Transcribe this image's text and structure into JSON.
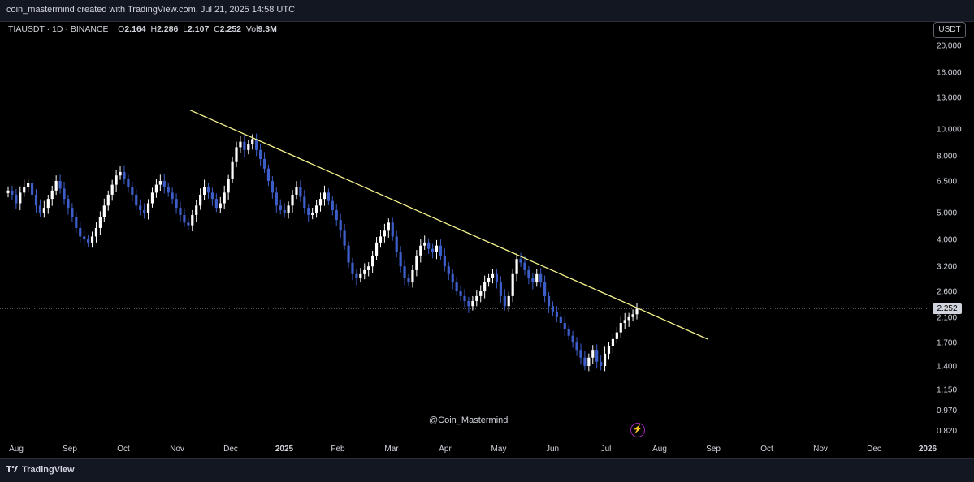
{
  "header": {
    "caption": "coin_mastermind created with TradingView.com, Jul 21, 2025 14:58 UTC"
  },
  "legend": {
    "symbol": "TIAUSDT · 1D · BINANCE",
    "open_label": "O",
    "open": "2.164",
    "high_label": "H",
    "high": "2.286",
    "low_label": "L",
    "low": "2.107",
    "close_label": "C",
    "close": "2.252",
    "vol_label": "Vol",
    "vol": "9.3M"
  },
  "currency_button": "USDT",
  "price_tag": "2.252",
  "watermark": "@Coin_Mastermind",
  "footer": {
    "brand": "TradingView"
  },
  "colors": {
    "up": "#ffffff",
    "down": "#3d5ec9",
    "trendline": "#f5f28a",
    "background": "#000000"
  },
  "chart_data": {
    "type": "candlestick",
    "scale": "log",
    "y_ticks": [
      "20.000",
      "16.000",
      "13.000",
      "10.000",
      "8.000",
      "6.500",
      "5.000",
      "4.000",
      "3.200",
      "2.600",
      "2.100",
      "1.700",
      "1.400",
      "1.150",
      "0.970",
      "0.820"
    ],
    "x_ticks": [
      {
        "label": "Aug",
        "bold": false
      },
      {
        "label": "Sep",
        "bold": false
      },
      {
        "label": "Oct",
        "bold": false
      },
      {
        "label": "Nov",
        "bold": false
      },
      {
        "label": "Dec",
        "bold": false
      },
      {
        "label": "2025",
        "bold": true
      },
      {
        "label": "Feb",
        "bold": false
      },
      {
        "label": "Mar",
        "bold": false
      },
      {
        "label": "Apr",
        "bold": false
      },
      {
        "label": "May",
        "bold": false
      },
      {
        "label": "Jun",
        "bold": false
      },
      {
        "label": "Jul",
        "bold": false
      },
      {
        "label": "Aug",
        "bold": false
      },
      {
        "label": "Sep",
        "bold": false
      },
      {
        "label": "Oct",
        "bold": false
      },
      {
        "label": "Nov",
        "bold": false
      },
      {
        "label": "Dec",
        "bold": false
      },
      {
        "label": "2026",
        "bold": true
      }
    ],
    "series_close": [
      6.0,
      5.8,
      5.4,
      5.9,
      6.2,
      6.4,
      5.8,
      5.3,
      5.0,
      5.2,
      5.6,
      6.0,
      6.5,
      6.1,
      5.6,
      5.2,
      4.8,
      4.4,
      4.1,
      4.0,
      3.9,
      4.1,
      4.4,
      4.8,
      5.3,
      5.8,
      6.3,
      6.8,
      7.0,
      6.6,
      6.2,
      5.8,
      5.3,
      5.1,
      5.0,
      5.4,
      5.9,
      6.3,
      6.5,
      6.2,
      5.9,
      5.6,
      5.2,
      4.9,
      4.6,
      4.5,
      4.9,
      5.3,
      5.8,
      6.2,
      5.9,
      5.6,
      5.2,
      5.4,
      5.9,
      6.6,
      7.6,
      8.6,
      9.0,
      8.4,
      8.8,
      9.2,
      8.4,
      7.8,
      7.2,
      6.5,
      5.9,
      5.3,
      5.1,
      5.0,
      5.3,
      5.8,
      6.2,
      5.7,
      5.2,
      4.9,
      5.0,
      5.3,
      5.6,
      5.9,
      5.5,
      5.1,
      4.7,
      4.3,
      3.8,
      3.3,
      3.0,
      2.9,
      3.0,
      3.1,
      3.2,
      3.5,
      3.9,
      4.1,
      4.3,
      4.6,
      4.1,
      3.6,
      3.2,
      2.9,
      2.8,
      3.1,
      3.5,
      3.8,
      3.9,
      3.7,
      3.6,
      3.8,
      3.5,
      3.2,
      3.0,
      2.8,
      2.6,
      2.5,
      2.4,
      2.3,
      2.4,
      2.5,
      2.6,
      2.8,
      2.9,
      3.0,
      2.8,
      2.5,
      2.3,
      2.5,
      3.0,
      3.4,
      3.3,
      3.1,
      2.9,
      2.8,
      3.0,
      2.8,
      2.5,
      2.3,
      2.2,
      2.1,
      2.0,
      1.9,
      1.8,
      1.7,
      1.6,
      1.5,
      1.4,
      1.5,
      1.6,
      1.45,
      1.4,
      1.55,
      1.65,
      1.75,
      1.85,
      2.0,
      2.05,
      2.1,
      2.15,
      2.25
    ],
    "trendline": {
      "start": {
        "date": "Nov 2024",
        "price": 11.7
      },
      "end": {
        "date": "Sep 2025",
        "price": 1.75
      }
    },
    "current_price": 2.252
  }
}
